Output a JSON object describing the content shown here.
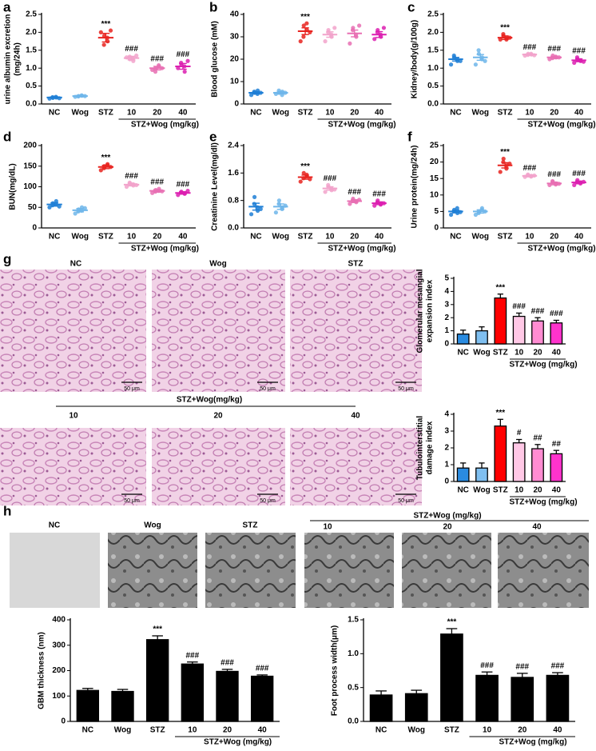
{
  "chart_data": [
    {
      "type": "dot",
      "panel": "a",
      "ylabel": [
        "urine albumin excretion",
        "(mg/24h)"
      ],
      "categories": [
        "NC",
        "Wog",
        "STZ",
        "10",
        "20",
        "40"
      ],
      "group_label": "STZ+Wog (mg/kg)",
      "colors": [
        "#1f7fd6",
        "#6fb6ea",
        "#e8231f",
        "#f2a3cb",
        "#e86fb3",
        "#dc1fb0"
      ],
      "values": [
        0.18,
        0.22,
        1.85,
        1.28,
        1.0,
        1.05
      ],
      "errors": [
        0.02,
        0.02,
        0.12,
        0.05,
        0.05,
        0.08
      ],
      "points": [
        [
          0.15,
          0.17,
          0.18,
          0.19,
          0.2,
          0.16
        ],
        [
          0.2,
          0.22,
          0.23,
          0.21,
          0.24,
          0.22
        ],
        [
          2.0,
          1.9,
          1.75,
          1.65,
          1.85,
          2.05
        ],
        [
          1.3,
          1.25,
          1.2,
          1.32,
          1.28,
          1.35
        ],
        [
          0.95,
          1.0,
          1.05,
          0.9,
          1.08,
          1.0
        ],
        [
          1.0,
          1.1,
          0.9,
          1.15,
          1.05,
          1.2
        ]
      ],
      "annotations": [
        null,
        null,
        "***",
        "###",
        "###",
        "###"
      ],
      "ylim": [
        0,
        2.5
      ],
      "yticks": [
        {
          "value": 0,
          "label": "0.0"
        },
        {
          "value": 0.5,
          "label": "0.5"
        },
        {
          "value": 1,
          "label": "1.0"
        },
        {
          "value": 1.5,
          "label": "1.5"
        },
        {
          "value": 2,
          "label": "2.0"
        },
        {
          "value": 2.5,
          "label": "2.5"
        }
      ]
    },
    {
      "type": "dot",
      "panel": "b",
      "ylabel": [
        "Blood glucose (mM)"
      ],
      "categories": [
        "NC",
        "Wog",
        "STZ",
        "10",
        "20",
        "40"
      ],
      "group_label": "STZ+Wog (mg/kg)",
      "colors": [
        "#1f7fd6",
        "#6fb6ea",
        "#e8231f",
        "#f2a3cb",
        "#e86fb3",
        "#dc1fb0"
      ],
      "values": [
        5,
        5,
        32.5,
        31,
        31.5,
        31
      ],
      "errors": [
        0.5,
        0.5,
        1.5,
        1.2,
        1.5,
        1.3
      ],
      "points": [
        [
          4,
          5,
          6,
          5.5,
          4.5,
          5
        ],
        [
          4.5,
          5,
          5.5,
          6,
          4,
          5
        ],
        [
          28,
          35,
          33,
          30,
          36,
          32
        ],
        [
          28,
          33,
          30,
          32,
          31,
          34
        ],
        [
          27,
          34,
          30,
          33,
          31,
          35
        ],
        [
          29,
          33,
          30,
          32,
          31,
          34
        ]
      ],
      "annotations": [
        null,
        null,
        "***",
        null,
        null,
        null
      ],
      "ylim": [
        0,
        40
      ],
      "yticks": [
        0,
        10,
        20,
        30,
        40
      ]
    },
    {
      "type": "dot",
      "panel": "c",
      "ylabel": [
        "Kidney/body(g/100g)"
      ],
      "categories": [
        "NC",
        "Wog",
        "STZ",
        "10",
        "20",
        "40"
      ],
      "group_label": "STZ+Wog (mg/kg)",
      "colors": [
        "#1f7fd6",
        "#6fb6ea",
        "#e8231f",
        "#f2a3cb",
        "#e86fb3",
        "#dc1fb0"
      ],
      "values": [
        1.25,
        1.3,
        1.85,
        1.38,
        1.3,
        1.22
      ],
      "errors": [
        0.05,
        0.08,
        0.05,
        0.02,
        0.03,
        0.04
      ],
      "points": [
        [
          1.1,
          1.3,
          1.2,
          1.35,
          1.25,
          1.2
        ],
        [
          1.1,
          1.4,
          1.3,
          1.5,
          1.25,
          1.2
        ],
        [
          1.8,
          1.9,
          1.85,
          1.95,
          1.8,
          1.85
        ],
        [
          1.35,
          1.4,
          1.38,
          1.37,
          1.4,
          1.36
        ],
        [
          1.25,
          1.35,
          1.3,
          1.28,
          1.32,
          1.3
        ],
        [
          1.15,
          1.25,
          1.2,
          1.3,
          1.22,
          1.18
        ]
      ],
      "annotations": [
        null,
        null,
        "***",
        "###",
        "###",
        "###"
      ],
      "ylim": [
        0,
        2.5
      ],
      "yticks": [
        {
          "value": 0,
          "label": "0.0"
        },
        {
          "value": 0.5,
          "label": "0.5"
        },
        {
          "value": 1,
          "label": "1.0"
        },
        {
          "value": 1.5,
          "label": "1.5"
        },
        {
          "value": 2,
          "label": "2.0"
        },
        {
          "value": 2.5,
          "label": "2.5"
        }
      ]
    },
    {
      "type": "dot",
      "panel": "d",
      "ylabel": [
        "BUN(mg/dL)"
      ],
      "categories": [
        "NC",
        "Wog",
        "STZ",
        "10",
        "20",
        "40"
      ],
      "group_label": "STZ+Wog (mg/kg)",
      "colors": [
        "#1f7fd6",
        "#6fb6ea",
        "#e8231f",
        "#f2a3cb",
        "#e86fb3",
        "#dc1fb0"
      ],
      "values": [
        57,
        43,
        148,
        105,
        90,
        85
      ],
      "errors": [
        4,
        4,
        4,
        3,
        3,
        3
      ],
      "points": [
        [
          50,
          60,
          65,
          55,
          58,
          52
        ],
        [
          35,
          45,
          50,
          40,
          42,
          48
        ],
        [
          140,
          150,
          155,
          145,
          152,
          148
        ],
        [
          100,
          108,
          103,
          110,
          106,
          104
        ],
        [
          85,
          92,
          95,
          88,
          90,
          89
        ],
        [
          80,
          88,
          83,
          86,
          84,
          90
        ]
      ],
      "annotations": [
        null,
        null,
        "***",
        "###",
        "###",
        "###"
      ],
      "ylim": [
        0,
        200
      ],
      "yticks": [
        0,
        50,
        100,
        150,
        200
      ]
    },
    {
      "type": "dot",
      "panel": "e",
      "ylabel": [
        "Creatinine Level(mg/dl)"
      ],
      "categories": [
        "NC",
        "Wog",
        "STZ",
        "10",
        "20",
        "40"
      ],
      "group_label": "STZ+Wog (mg/kg)",
      "colors": [
        "#1f7fd6",
        "#6fb6ea",
        "#e8231f",
        "#f2a3cb",
        "#e86fb3",
        "#dc1fb0"
      ],
      "values": [
        0.62,
        0.62,
        1.48,
        1.15,
        0.78,
        0.72
      ],
      "errors": [
        0.1,
        0.08,
        0.06,
        0.05,
        0.04,
        0.04
      ],
      "points": [
        [
          0.4,
          0.9,
          0.5,
          0.7,
          0.6,
          0.55
        ],
        [
          0.45,
          0.8,
          0.6,
          0.7,
          0.55,
          0.65
        ],
        [
          1.35,
          1.6,
          1.5,
          1.45,
          1.55,
          1.42
        ],
        [
          1.05,
          1.2,
          1.1,
          1.25,
          1.15,
          1.12
        ],
        [
          0.7,
          0.85,
          0.75,
          0.8,
          0.78,
          0.82
        ],
        [
          0.65,
          0.8,
          0.7,
          0.75,
          0.68,
          0.72
        ]
      ],
      "annotations": [
        null,
        null,
        "***",
        "###",
        "###",
        "###"
      ],
      "ylim": [
        0,
        2.4
      ],
      "yticks": [
        {
          "value": 0,
          "label": "0.0"
        },
        0.8,
        1.6,
        2.4
      ]
    },
    {
      "type": "dot",
      "panel": "f",
      "ylabel": [
        "Urine protein(mg/24h)"
      ],
      "categories": [
        "NC",
        "Wog",
        "STZ",
        "10",
        "20",
        "40"
      ],
      "group_label": "STZ+Wog (mg/kg)",
      "colors": [
        "#1f7fd6",
        "#6fb6ea",
        "#e8231f",
        "#f2a3cb",
        "#e86fb3",
        "#dc1fb0"
      ],
      "values": [
        5,
        5,
        19,
        15.8,
        13.5,
        13.8
      ],
      "errors": [
        0.4,
        0.5,
        0.8,
        0.3,
        0.4,
        0.4
      ],
      "points": [
        [
          4,
          5.5,
          4.5,
          5,
          6,
          4.8
        ],
        [
          4,
          5,
          6,
          4.5,
          5.5,
          5
        ],
        [
          17,
          21,
          19,
          20,
          18,
          19.5
        ],
        [
          15.5,
          16,
          15.8,
          16.2,
          15.6,
          15.9
        ],
        [
          13,
          14,
          13.5,
          14.2,
          13.2,
          13.4
        ],
        [
          13,
          14.5,
          13.8,
          14,
          13.5,
          14
        ]
      ],
      "annotations": [
        null,
        null,
        "***",
        "###",
        "###",
        "###"
      ],
      "ylim": [
        0,
        25
      ],
      "yticks": [
        0,
        5,
        10,
        15,
        20,
        25
      ]
    },
    {
      "type": "bar",
      "ylabel": [
        "Glomerular mesangial",
        "expansion index"
      ],
      "categories": [
        "NC",
        "Wog",
        "STZ",
        "10",
        "20",
        "40"
      ],
      "group_label": "STZ+Wog (mg/kg)",
      "colors": [
        "#2a8be0",
        "#7fbff0",
        "#ff0000",
        "#ffc8e6",
        "#ff8cd2",
        "#ff33cc"
      ],
      "values": [
        0.75,
        1.0,
        3.5,
        2.1,
        1.75,
        1.6
      ],
      "errors": [
        0.3,
        0.3,
        0.3,
        0.25,
        0.25,
        0.2
      ],
      "annotations": [
        null,
        null,
        "***",
        "###",
        "###",
        "###"
      ],
      "ylim": [
        0,
        5
      ],
      "yticks": [
        0,
        1,
        2,
        3,
        4,
        5
      ]
    },
    {
      "type": "bar",
      "ylabel": [
        "Tubulointerstitial",
        "damage index"
      ],
      "categories": [
        "NC",
        "Wog",
        "STZ",
        "10",
        "20",
        "40"
      ],
      "group_label": "STZ+Wog (mg/kg)",
      "colors": [
        "#2a8be0",
        "#7fbff0",
        "#ff0000",
        "#ffc8e6",
        "#ff8cd2",
        "#ff33cc"
      ],
      "values": [
        0.8,
        0.8,
        3.3,
        2.3,
        1.95,
        1.65
      ],
      "errors": [
        0.3,
        0.3,
        0.4,
        0.2,
        0.25,
        0.2
      ],
      "annotations": [
        null,
        null,
        "***",
        "#",
        "##",
        "##"
      ],
      "ylim": [
        0,
        4
      ],
      "yticks": [
        0,
        1,
        2,
        3,
        4
      ]
    },
    {
      "type": "bar",
      "ylabel": [
        "GBM thickness (nm)"
      ],
      "categories": [
        "NC",
        "Wog",
        "STZ",
        "10",
        "20",
        "40"
      ],
      "group_label": "STZ+Wog (mg/kg)",
      "color": "#000000",
      "values": [
        122,
        118,
        322,
        226,
        197,
        178
      ],
      "errors": [
        8,
        8,
        15,
        8,
        8,
        5
      ],
      "annotations": [
        null,
        null,
        "***",
        "###",
        "###",
        "###"
      ],
      "ylim": [
        0,
        400
      ],
      "yticks": [
        0,
        100,
        200,
        300,
        400
      ]
    },
    {
      "type": "bar",
      "ylabel": [
        "Foot process width(μm)"
      ],
      "categories": [
        "NC",
        "Wog",
        "STZ",
        "10",
        "20",
        "40"
      ],
      "group_label": "STZ+Wog (mg/kg)",
      "color": "#000000",
      "values": [
        0.39,
        0.41,
        1.29,
        0.68,
        0.65,
        0.68
      ],
      "errors": [
        0.06,
        0.05,
        0.08,
        0.05,
        0.06,
        0.04
      ],
      "annotations": [
        null,
        null,
        "***",
        "###",
        "###",
        "###"
      ],
      "ylim": [
        0,
        1.5
      ],
      "yticks": [
        {
          "value": 0,
          "label": "0.0"
        },
        0.5,
        {
          "value": 1,
          "label": "1.0"
        },
        1.5
      ]
    }
  ],
  "micrographs": {
    "g": {
      "panel": "g",
      "top_labels": [
        "NC",
        "Wog",
        "STZ"
      ],
      "group_label": "STZ+Wog(mg/kg)",
      "bottom_labels": [
        "10",
        "20",
        "40"
      ],
      "scale_bar": "50 μm"
    },
    "h": {
      "panel": "h",
      "labels": [
        "NC",
        "Wog",
        "STZ"
      ],
      "group_label": "STZ+Wog (mg/kg)",
      "dose_labels": [
        "10",
        "20",
        "40"
      ]
    }
  }
}
